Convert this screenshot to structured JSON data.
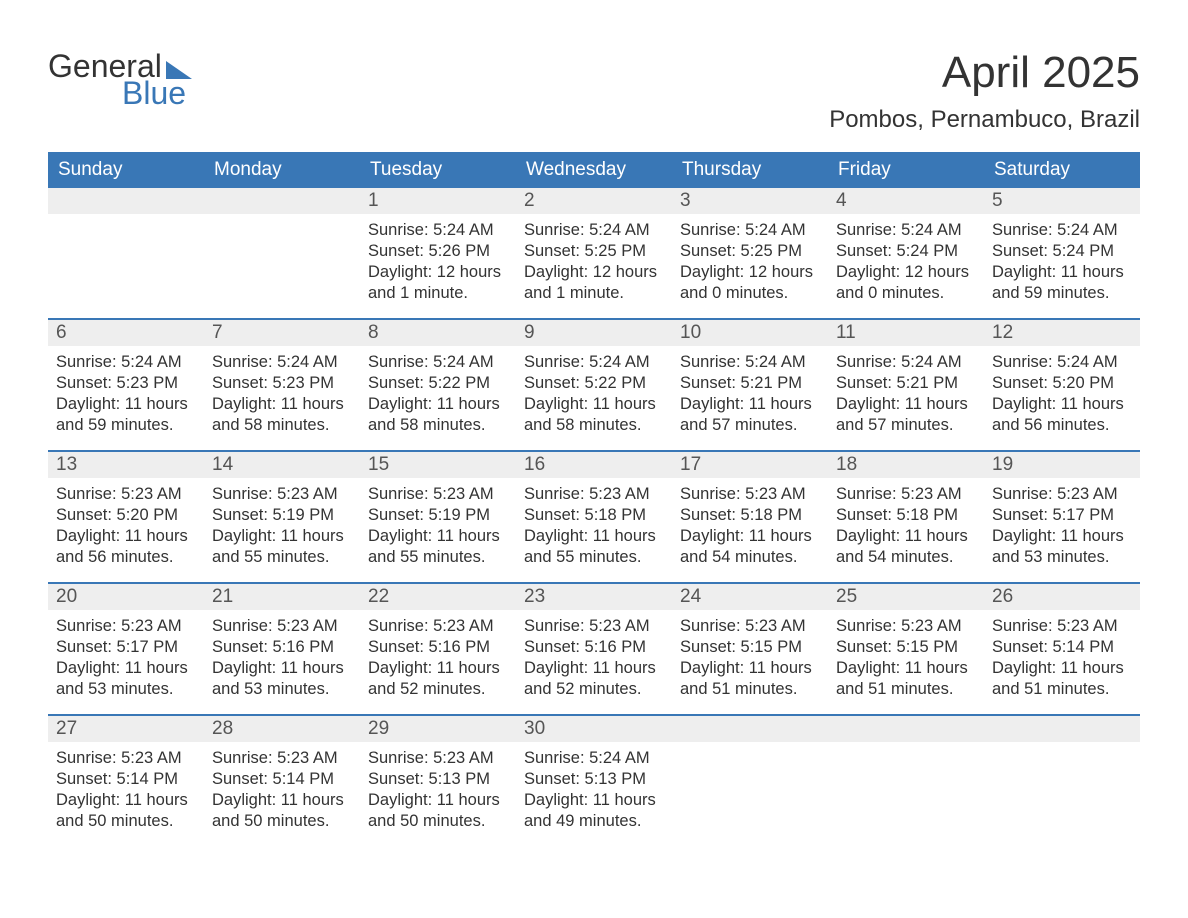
{
  "logo": {
    "line1": "General",
    "line2": "Blue"
  },
  "title": "April 2025",
  "location": "Pombos, Pernambuco, Brazil",
  "colors": {
    "brand_blue": "#3977b6",
    "header_bg": "#3977b6",
    "header_text": "#ffffff",
    "daynum_bg": "#eeeeee",
    "week_border": "#3977b6",
    "body_text": "#333333",
    "page_bg": "#ffffff"
  },
  "typography": {
    "title_fontsize": 44,
    "location_fontsize": 24,
    "header_fontsize": 19,
    "daynum_fontsize": 19,
    "body_fontsize": 16.5
  },
  "day_headers": [
    "Sunday",
    "Monday",
    "Tuesday",
    "Wednesday",
    "Thursday",
    "Friday",
    "Saturday"
  ],
  "weeks": [
    [
      {
        "num": "",
        "sunrise": "",
        "sunset": "",
        "daylight": ""
      },
      {
        "num": "",
        "sunrise": "",
        "sunset": "",
        "daylight": ""
      },
      {
        "num": "1",
        "sunrise": "Sunrise: 5:24 AM",
        "sunset": "Sunset: 5:26 PM",
        "daylight": "Daylight: 12 hours and 1 minute."
      },
      {
        "num": "2",
        "sunrise": "Sunrise: 5:24 AM",
        "sunset": "Sunset: 5:25 PM",
        "daylight": "Daylight: 12 hours and 1 minute."
      },
      {
        "num": "3",
        "sunrise": "Sunrise: 5:24 AM",
        "sunset": "Sunset: 5:25 PM",
        "daylight": "Daylight: 12 hours and 0 minutes."
      },
      {
        "num": "4",
        "sunrise": "Sunrise: 5:24 AM",
        "sunset": "Sunset: 5:24 PM",
        "daylight": "Daylight: 12 hours and 0 minutes."
      },
      {
        "num": "5",
        "sunrise": "Sunrise: 5:24 AM",
        "sunset": "Sunset: 5:24 PM",
        "daylight": "Daylight: 11 hours and 59 minutes."
      }
    ],
    [
      {
        "num": "6",
        "sunrise": "Sunrise: 5:24 AM",
        "sunset": "Sunset: 5:23 PM",
        "daylight": "Daylight: 11 hours and 59 minutes."
      },
      {
        "num": "7",
        "sunrise": "Sunrise: 5:24 AM",
        "sunset": "Sunset: 5:23 PM",
        "daylight": "Daylight: 11 hours and 58 minutes."
      },
      {
        "num": "8",
        "sunrise": "Sunrise: 5:24 AM",
        "sunset": "Sunset: 5:22 PM",
        "daylight": "Daylight: 11 hours and 58 minutes."
      },
      {
        "num": "9",
        "sunrise": "Sunrise: 5:24 AM",
        "sunset": "Sunset: 5:22 PM",
        "daylight": "Daylight: 11 hours and 58 minutes."
      },
      {
        "num": "10",
        "sunrise": "Sunrise: 5:24 AM",
        "sunset": "Sunset: 5:21 PM",
        "daylight": "Daylight: 11 hours and 57 minutes."
      },
      {
        "num": "11",
        "sunrise": "Sunrise: 5:24 AM",
        "sunset": "Sunset: 5:21 PM",
        "daylight": "Daylight: 11 hours and 57 minutes."
      },
      {
        "num": "12",
        "sunrise": "Sunrise: 5:24 AM",
        "sunset": "Sunset: 5:20 PM",
        "daylight": "Daylight: 11 hours and 56 minutes."
      }
    ],
    [
      {
        "num": "13",
        "sunrise": "Sunrise: 5:23 AM",
        "sunset": "Sunset: 5:20 PM",
        "daylight": "Daylight: 11 hours and 56 minutes."
      },
      {
        "num": "14",
        "sunrise": "Sunrise: 5:23 AM",
        "sunset": "Sunset: 5:19 PM",
        "daylight": "Daylight: 11 hours and 55 minutes."
      },
      {
        "num": "15",
        "sunrise": "Sunrise: 5:23 AM",
        "sunset": "Sunset: 5:19 PM",
        "daylight": "Daylight: 11 hours and 55 minutes."
      },
      {
        "num": "16",
        "sunrise": "Sunrise: 5:23 AM",
        "sunset": "Sunset: 5:18 PM",
        "daylight": "Daylight: 11 hours and 55 minutes."
      },
      {
        "num": "17",
        "sunrise": "Sunrise: 5:23 AM",
        "sunset": "Sunset: 5:18 PM",
        "daylight": "Daylight: 11 hours and 54 minutes."
      },
      {
        "num": "18",
        "sunrise": "Sunrise: 5:23 AM",
        "sunset": "Sunset: 5:18 PM",
        "daylight": "Daylight: 11 hours and 54 minutes."
      },
      {
        "num": "19",
        "sunrise": "Sunrise: 5:23 AM",
        "sunset": "Sunset: 5:17 PM",
        "daylight": "Daylight: 11 hours and 53 minutes."
      }
    ],
    [
      {
        "num": "20",
        "sunrise": "Sunrise: 5:23 AM",
        "sunset": "Sunset: 5:17 PM",
        "daylight": "Daylight: 11 hours and 53 minutes."
      },
      {
        "num": "21",
        "sunrise": "Sunrise: 5:23 AM",
        "sunset": "Sunset: 5:16 PM",
        "daylight": "Daylight: 11 hours and 53 minutes."
      },
      {
        "num": "22",
        "sunrise": "Sunrise: 5:23 AM",
        "sunset": "Sunset: 5:16 PM",
        "daylight": "Daylight: 11 hours and 52 minutes."
      },
      {
        "num": "23",
        "sunrise": "Sunrise: 5:23 AM",
        "sunset": "Sunset: 5:16 PM",
        "daylight": "Daylight: 11 hours and 52 minutes."
      },
      {
        "num": "24",
        "sunrise": "Sunrise: 5:23 AM",
        "sunset": "Sunset: 5:15 PM",
        "daylight": "Daylight: 11 hours and 51 minutes."
      },
      {
        "num": "25",
        "sunrise": "Sunrise: 5:23 AM",
        "sunset": "Sunset: 5:15 PM",
        "daylight": "Daylight: 11 hours and 51 minutes."
      },
      {
        "num": "26",
        "sunrise": "Sunrise: 5:23 AM",
        "sunset": "Sunset: 5:14 PM",
        "daylight": "Daylight: 11 hours and 51 minutes."
      }
    ],
    [
      {
        "num": "27",
        "sunrise": "Sunrise: 5:23 AM",
        "sunset": "Sunset: 5:14 PM",
        "daylight": "Daylight: 11 hours and 50 minutes."
      },
      {
        "num": "28",
        "sunrise": "Sunrise: 5:23 AM",
        "sunset": "Sunset: 5:14 PM",
        "daylight": "Daylight: 11 hours and 50 minutes."
      },
      {
        "num": "29",
        "sunrise": "Sunrise: 5:23 AM",
        "sunset": "Sunset: 5:13 PM",
        "daylight": "Daylight: 11 hours and 50 minutes."
      },
      {
        "num": "30",
        "sunrise": "Sunrise: 5:24 AM",
        "sunset": "Sunset: 5:13 PM",
        "daylight": "Daylight: 11 hours and 49 minutes."
      },
      {
        "num": "",
        "sunrise": "",
        "sunset": "",
        "daylight": ""
      },
      {
        "num": "",
        "sunrise": "",
        "sunset": "",
        "daylight": ""
      },
      {
        "num": "",
        "sunrise": "",
        "sunset": "",
        "daylight": ""
      }
    ]
  ]
}
